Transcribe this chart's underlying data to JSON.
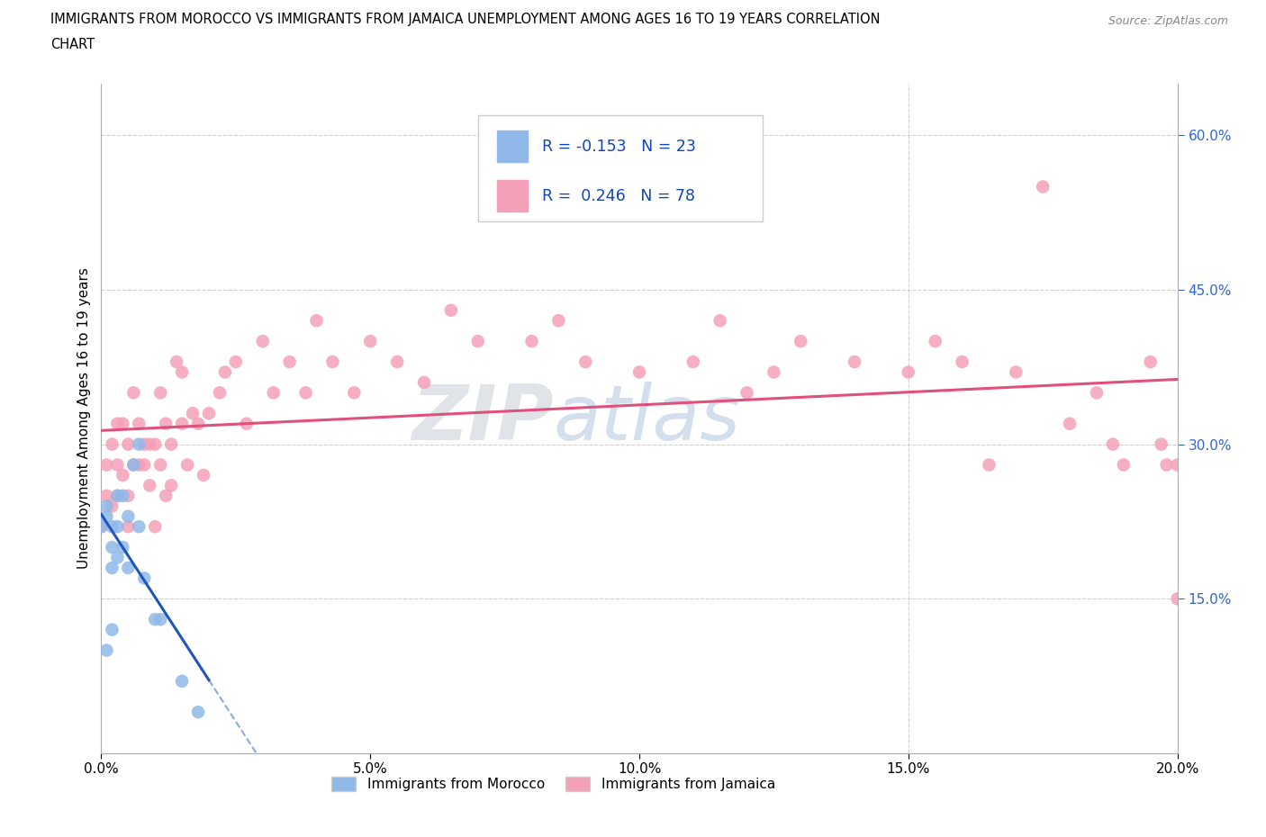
{
  "title_line1": "IMMIGRANTS FROM MOROCCO VS IMMIGRANTS FROM JAMAICA UNEMPLOYMENT AMONG AGES 16 TO 19 YEARS CORRELATION",
  "title_line2": "CHART",
  "source_text": "Source: ZipAtlas.com",
  "ylabel": "Unemployment Among Ages 16 to 19 years",
  "xlim": [
    0.0,
    0.2
  ],
  "ylim": [
    0.0,
    0.65
  ],
  "xticks": [
    0.0,
    0.05,
    0.1,
    0.15,
    0.2
  ],
  "xtick_labels": [
    "0.0%",
    "5.0%",
    "10.0%",
    "15.0%",
    "20.0%"
  ],
  "ytick_labels": [
    "15.0%",
    "30.0%",
    "45.0%",
    "60.0%"
  ],
  "ytick_vals": [
    0.15,
    0.3,
    0.45,
    0.6
  ],
  "grid_color": "#d0d0d0",
  "morocco_color": "#90b8e8",
  "jamaica_color": "#f4a0b8",
  "morocco_R": -0.153,
  "morocco_N": 23,
  "jamaica_R": 0.246,
  "jamaica_N": 78,
  "morocco_line_color": "#2255bb",
  "jamaica_line_color": "#e0507a",
  "legend_R_color": "#1144bb",
  "morocco_x": [
    0.0,
    0.001,
    0.001,
    0.001,
    0.002,
    0.002,
    0.002,
    0.002,
    0.003,
    0.003,
    0.003,
    0.004,
    0.004,
    0.005,
    0.005,
    0.006,
    0.007,
    0.007,
    0.008,
    0.01,
    0.011,
    0.015,
    0.018
  ],
  "morocco_y": [
    0.22,
    0.23,
    0.24,
    0.1,
    0.22,
    0.2,
    0.18,
    0.12,
    0.19,
    0.22,
    0.25,
    0.25,
    0.2,
    0.23,
    0.18,
    0.28,
    0.3,
    0.22,
    0.17,
    0.13,
    0.13,
    0.07,
    0.04
  ],
  "jamaica_x": [
    0.0,
    0.001,
    0.001,
    0.002,
    0.002,
    0.003,
    0.003,
    0.003,
    0.004,
    0.004,
    0.005,
    0.005,
    0.005,
    0.006,
    0.006,
    0.007,
    0.007,
    0.008,
    0.008,
    0.009,
    0.009,
    0.01,
    0.01,
    0.011,
    0.011,
    0.012,
    0.012,
    0.013,
    0.013,
    0.014,
    0.015,
    0.015,
    0.016,
    0.017,
    0.018,
    0.019,
    0.02,
    0.022,
    0.023,
    0.025,
    0.027,
    0.03,
    0.032,
    0.035,
    0.038,
    0.04,
    0.043,
    0.047,
    0.05,
    0.055,
    0.06,
    0.065,
    0.07,
    0.08,
    0.085,
    0.09,
    0.1,
    0.11,
    0.115,
    0.12,
    0.125,
    0.13,
    0.14,
    0.15,
    0.155,
    0.16,
    0.165,
    0.17,
    0.175,
    0.18,
    0.185,
    0.188,
    0.19,
    0.195,
    0.197,
    0.198,
    0.2,
    0.2
  ],
  "jamaica_y": [
    0.22,
    0.25,
    0.28,
    0.24,
    0.3,
    0.28,
    0.32,
    0.25,
    0.27,
    0.32,
    0.25,
    0.3,
    0.22,
    0.28,
    0.35,
    0.28,
    0.32,
    0.28,
    0.3,
    0.3,
    0.26,
    0.3,
    0.22,
    0.28,
    0.35,
    0.32,
    0.25,
    0.3,
    0.26,
    0.38,
    0.32,
    0.37,
    0.28,
    0.33,
    0.32,
    0.27,
    0.33,
    0.35,
    0.37,
    0.38,
    0.32,
    0.4,
    0.35,
    0.38,
    0.35,
    0.42,
    0.38,
    0.35,
    0.4,
    0.38,
    0.36,
    0.43,
    0.4,
    0.4,
    0.42,
    0.38,
    0.37,
    0.38,
    0.42,
    0.35,
    0.37,
    0.4,
    0.38,
    0.37,
    0.4,
    0.38,
    0.28,
    0.37,
    0.55,
    0.32,
    0.35,
    0.3,
    0.28,
    0.38,
    0.3,
    0.28,
    0.28,
    0.15
  ]
}
